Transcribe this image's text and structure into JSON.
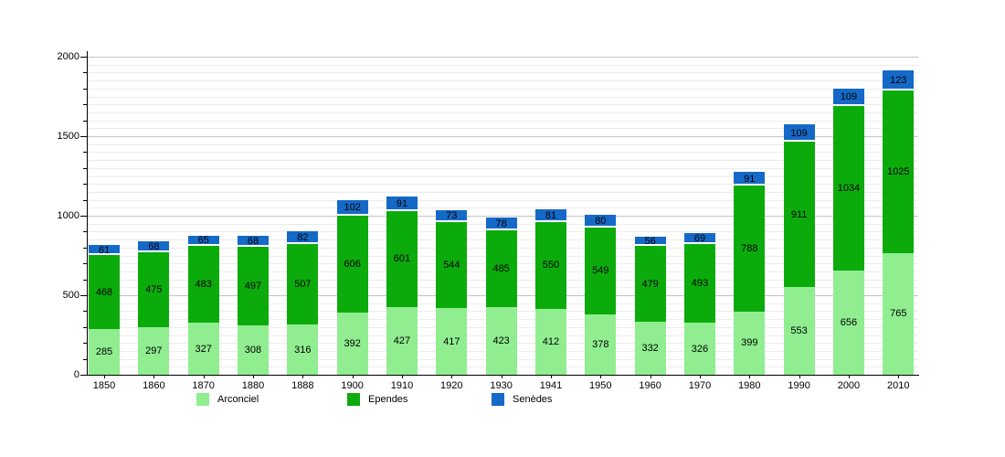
{
  "chart_data": {
    "type": "bar",
    "stacked": true,
    "title": "",
    "xlabel": "",
    "ylabel": "",
    "categories": [
      "1850",
      "1860",
      "1870",
      "1880",
      "1888",
      "1900",
      "1910",
      "1920",
      "1930",
      "1941",
      "1950",
      "1960",
      "1970",
      "1980",
      "1990",
      "2000",
      "2010"
    ],
    "series": [
      {
        "name": "Arconciel",
        "color": "#90ee90",
        "values": [
          285,
          297,
          327,
          308,
          316,
          392,
          427,
          417,
          423,
          412,
          378,
          332,
          326,
          399,
          553,
          656,
          765
        ]
      },
      {
        "name": "Ependes",
        "color": "#0cab0c",
        "values": [
          468,
          475,
          483,
          497,
          507,
          606,
          601,
          544,
          485,
          550,
          549,
          479,
          493,
          788,
          911,
          1034,
          1025
        ]
      },
      {
        "name": "Senèdes",
        "color": "#1569c7",
        "values": [
          61,
          68,
          65,
          68,
          82,
          102,
          91,
          73,
          78,
          81,
          80,
          56,
          69,
          91,
          109,
          109,
          123
        ]
      }
    ],
    "ylim": [
      0,
      2000
    ],
    "yticks": [
      0,
      500,
      1000,
      1500,
      2000
    ],
    "grid": {
      "minor_step": 50,
      "major_step": 500,
      "on": true
    },
    "legend_position": "bottom",
    "background_color": "#ffffff",
    "value_labels_shown": true
  }
}
